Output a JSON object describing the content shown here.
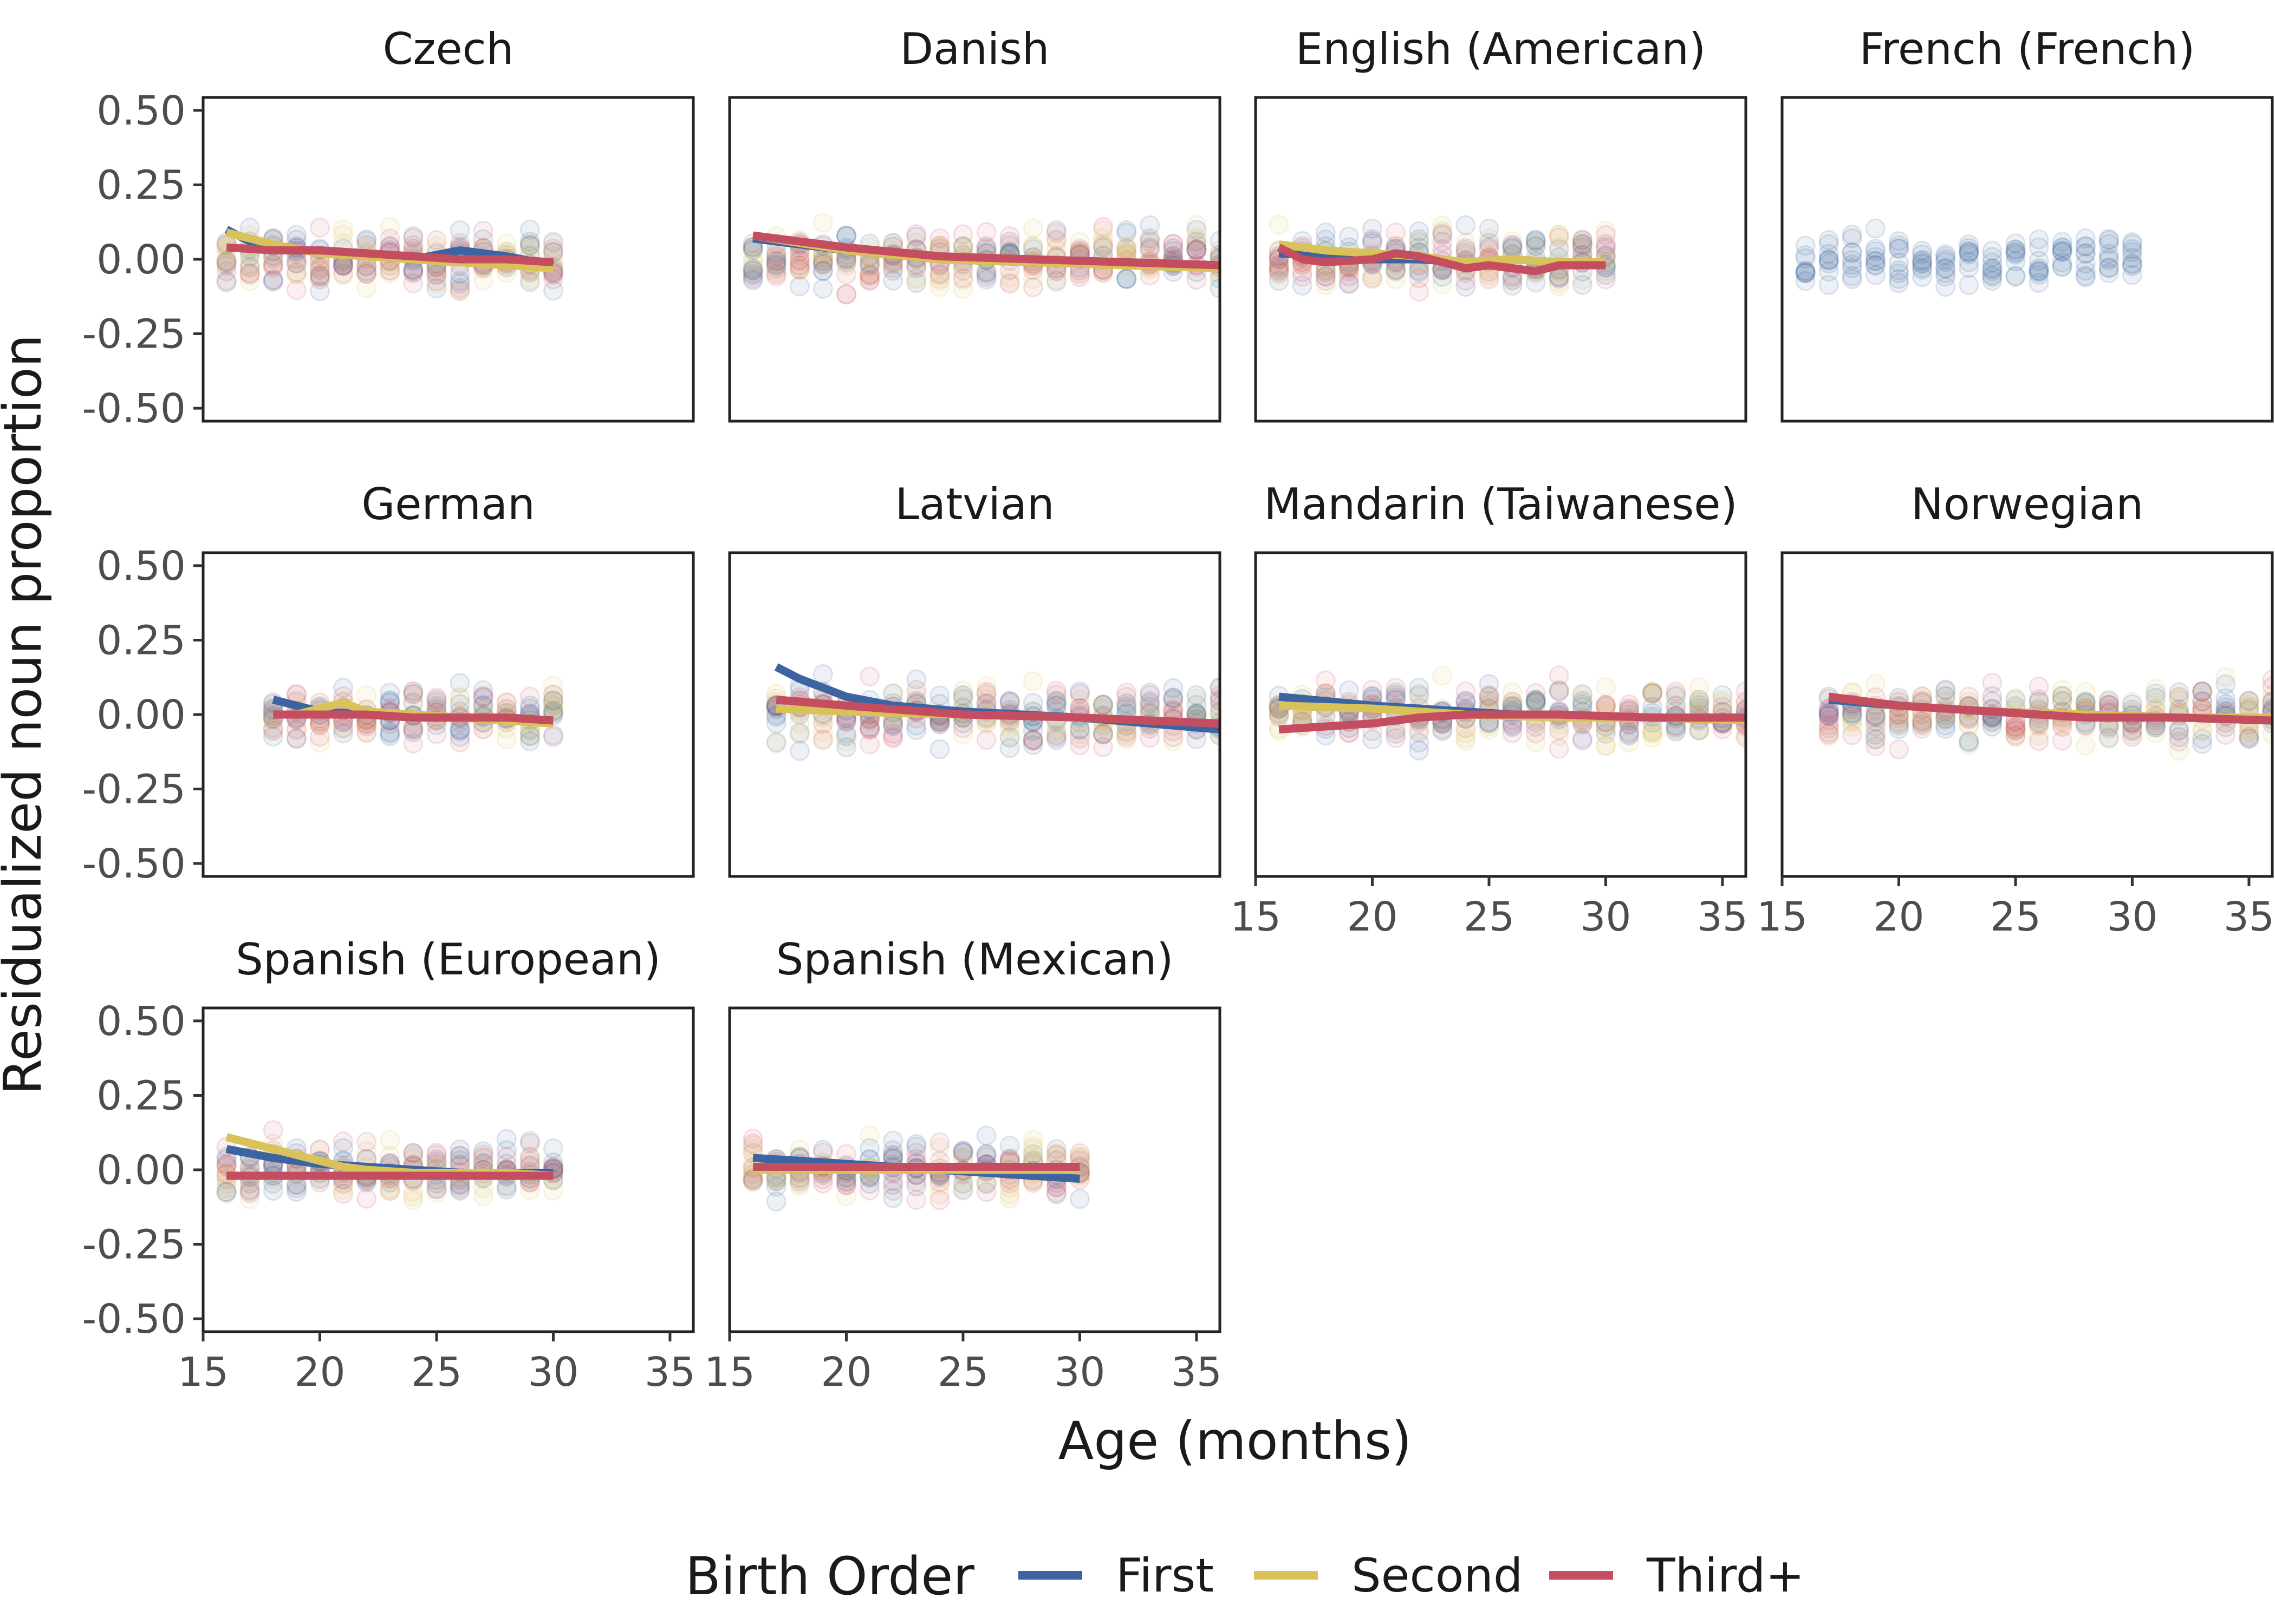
{
  "chart_data": {
    "type": "scatter",
    "xlabel": "Age (months)",
    "ylabel": "Residualized noun proportion",
    "xlim": [
      16,
      36
    ],
    "ylim": [
      -0.5,
      0.5
    ],
    "x_ticks": [
      15,
      20,
      25,
      30,
      35
    ],
    "y_ticks": [
      0.5,
      0.25,
      0,
      -0.25,
      -0.5
    ],
    "y_tick_labels": [
      "0.50",
      "0.25",
      "0.00",
      "-0.25",
      "-0.50"
    ],
    "grid": false,
    "legend": {
      "title": "Birth Order",
      "placement": "bottom",
      "entries": [
        {
          "name": "First",
          "color": "#3b64a0"
        },
        {
          "name": "Second",
          "color": "#d9c25a"
        },
        {
          "name": "Third+",
          "color": "#c44e60"
        }
      ]
    },
    "facets": [
      {
        "title": "Czech",
        "x_range": [
          16,
          30
        ],
        "series": [
          {
            "name": "First",
            "x": [
              16,
              17,
              18,
              20,
              22,
              24,
              26,
              28,
              30
            ],
            "y": [
              0.1,
              0.06,
              0.03,
              0.03,
              0.02,
              0.0,
              0.03,
              0.01,
              -0.02
            ]
          },
          {
            "name": "Second",
            "x": [
              16,
              18,
              20,
              22,
              24,
              26,
              28,
              30
            ],
            "y": [
              0.09,
              0.05,
              0.02,
              0.01,
              0.0,
              -0.01,
              -0.02,
              -0.03
            ]
          },
          {
            "name": "Third+",
            "x": [
              16,
              18,
              20,
              22,
              24,
              26,
              28,
              30
            ],
            "y": [
              0.04,
              0.03,
              0.03,
              0.02,
              0.01,
              0.0,
              0.0,
              -0.01
            ]
          }
        ]
      },
      {
        "title": "Danish",
        "x_range": [
          16,
          36
        ],
        "series": [
          {
            "name": "First",
            "x": [
              16,
              20,
              24,
              28,
              32,
              36
            ],
            "y": [
              0.07,
              0.03,
              0.0,
              -0.01,
              -0.01,
              -0.02
            ]
          },
          {
            "name": "Second",
            "x": [
              16,
              20,
              24,
              28,
              32,
              36
            ],
            "y": [
              0.08,
              0.03,
              0.0,
              -0.01,
              -0.02,
              -0.03
            ]
          },
          {
            "name": "Third+",
            "x": [
              16,
              20,
              24,
              28,
              32,
              36
            ],
            "y": [
              0.08,
              0.04,
              0.01,
              0.0,
              -0.01,
              -0.02
            ]
          }
        ]
      },
      {
        "title": "English (American)",
        "x_range": [
          16,
          30
        ],
        "series": [
          {
            "name": "First",
            "x": [
              16,
              18,
              20,
              22,
              24,
              26,
              28,
              30
            ],
            "y": [
              0.02,
              0.01,
              0.0,
              0.0,
              -0.01,
              0.0,
              -0.01,
              -0.01
            ]
          },
          {
            "name": "Second",
            "x": [
              16,
              18,
              20,
              22,
              24,
              26,
              28,
              30
            ],
            "y": [
              0.05,
              0.03,
              0.02,
              0.01,
              -0.01,
              0.0,
              -0.01,
              -0.01
            ]
          },
          {
            "name": "Third+",
            "x": [
              16,
              17,
              18,
              20,
              21,
              22,
              24,
              25,
              26,
              27,
              28,
              30
            ],
            "y": [
              0.04,
              0.0,
              -0.01,
              0.0,
              0.02,
              0.01,
              -0.03,
              -0.02,
              -0.03,
              -0.04,
              -0.02,
              -0.02
            ]
          }
        ]
      },
      {
        "title": "French (French)",
        "x_range": [
          16,
          30
        ],
        "series": []
      },
      {
        "title": "German",
        "x_range": [
          18,
          30
        ],
        "series": [
          {
            "name": "First",
            "x": [
              18,
              19,
              20,
              22,
              24,
              26,
              28,
              30
            ],
            "y": [
              0.05,
              0.03,
              0.01,
              0.0,
              -0.01,
              -0.01,
              -0.01,
              -0.02
            ]
          },
          {
            "name": "Second",
            "x": [
              18,
              19,
              20,
              21,
              22,
              24,
              26,
              28,
              30
            ],
            "y": [
              0.0,
              0.0,
              0.02,
              0.04,
              0.01,
              0.0,
              -0.01,
              -0.02,
              -0.03
            ]
          },
          {
            "name": "Third+",
            "x": [
              18,
              20,
              22,
              24,
              26,
              28,
              30
            ],
            "y": [
              0.0,
              0.0,
              0.0,
              -0.01,
              -0.01,
              -0.01,
              -0.02
            ]
          }
        ]
      },
      {
        "title": "Latvian",
        "x_range": [
          17,
          36
        ],
        "series": [
          {
            "name": "First",
            "x": [
              17,
              18,
              20,
              22,
              25,
              30,
              36
            ],
            "y": [
              0.16,
              0.12,
              0.06,
              0.03,
              0.01,
              -0.01,
              -0.05
            ]
          },
          {
            "name": "Second",
            "x": [
              17,
              20,
              25,
              30,
              36
            ],
            "y": [
              0.02,
              0.01,
              0.0,
              -0.01,
              -0.03
            ]
          },
          {
            "name": "Third+",
            "x": [
              17,
              20,
              25,
              30,
              36
            ],
            "y": [
              0.05,
              0.03,
              0.0,
              -0.01,
              -0.03
            ]
          }
        ]
      },
      {
        "title": "Mandarin (Taiwanese)",
        "x_range": [
          16,
          36
        ],
        "series": [
          {
            "name": "First",
            "x": [
              16,
              20,
              24,
              28,
              32,
              36
            ],
            "y": [
              0.06,
              0.03,
              0.01,
              -0.01,
              -0.01,
              -0.02
            ]
          },
          {
            "name": "Second",
            "x": [
              16,
              20,
              24,
              28,
              32,
              36
            ],
            "y": [
              0.03,
              0.02,
              0.0,
              -0.01,
              -0.01,
              -0.02
            ]
          },
          {
            "name": "Third+",
            "x": [
              16,
              18,
              20,
              22,
              24,
              28,
              32,
              36
            ],
            "y": [
              -0.05,
              -0.04,
              -0.03,
              -0.01,
              0.0,
              0.0,
              -0.01,
              -0.01
            ]
          }
        ]
      },
      {
        "title": "Norwegian",
        "x_range": [
          17,
          36
        ],
        "series": [
          {
            "name": "First",
            "x": [
              17,
              20,
              24,
              28,
              32,
              36
            ],
            "y": [
              0.05,
              0.03,
              0.01,
              0.0,
              -0.01,
              -0.02
            ]
          },
          {
            "name": "Second",
            "x": [
              17,
              20,
              24,
              28,
              32,
              36
            ],
            "y": [
              0.06,
              0.03,
              0.01,
              0.0,
              -0.01,
              -0.01
            ]
          },
          {
            "name": "Third+",
            "x": [
              17,
              20,
              24,
              28,
              32,
              36
            ],
            "y": [
              0.06,
              0.03,
              0.01,
              -0.01,
              -0.01,
              -0.02
            ]
          }
        ]
      },
      {
        "title": "Spanish (European)",
        "x_range": [
          16,
          30
        ],
        "series": [
          {
            "name": "First",
            "x": [
              16,
              18,
              20,
              22,
              24,
              26,
              28,
              30
            ],
            "y": [
              0.07,
              0.04,
              0.02,
              0.01,
              0.0,
              -0.01,
              -0.01,
              -0.01
            ]
          },
          {
            "name": "Second",
            "x": [
              16,
              18,
              20,
              21,
              22,
              24,
              26,
              28,
              30
            ],
            "y": [
              0.11,
              0.07,
              0.03,
              0.01,
              0.0,
              -0.01,
              -0.01,
              -0.01,
              -0.02
            ]
          },
          {
            "name": "Third+",
            "x": [
              16,
              20,
              25,
              30
            ],
            "y": [
              -0.02,
              -0.02,
              -0.02,
              -0.02
            ]
          }
        ]
      },
      {
        "title": "Spanish (Mexican)",
        "x_range": [
          16,
          30
        ],
        "series": [
          {
            "name": "First",
            "x": [
              16,
              20,
              24,
              28,
              30
            ],
            "y": [
              0.04,
              0.02,
              0.0,
              -0.02,
              -0.03
            ]
          },
          {
            "name": "Second",
            "x": [
              16,
              20,
              25,
              30
            ],
            "y": [
              0.0,
              0.0,
              0.0,
              0.0
            ]
          },
          {
            "name": "Third+",
            "x": [
              16,
              20,
              25,
              30
            ],
            "y": [
              0.01,
              0.01,
              0.01,
              0.01
            ]
          }
        ]
      }
    ]
  }
}
